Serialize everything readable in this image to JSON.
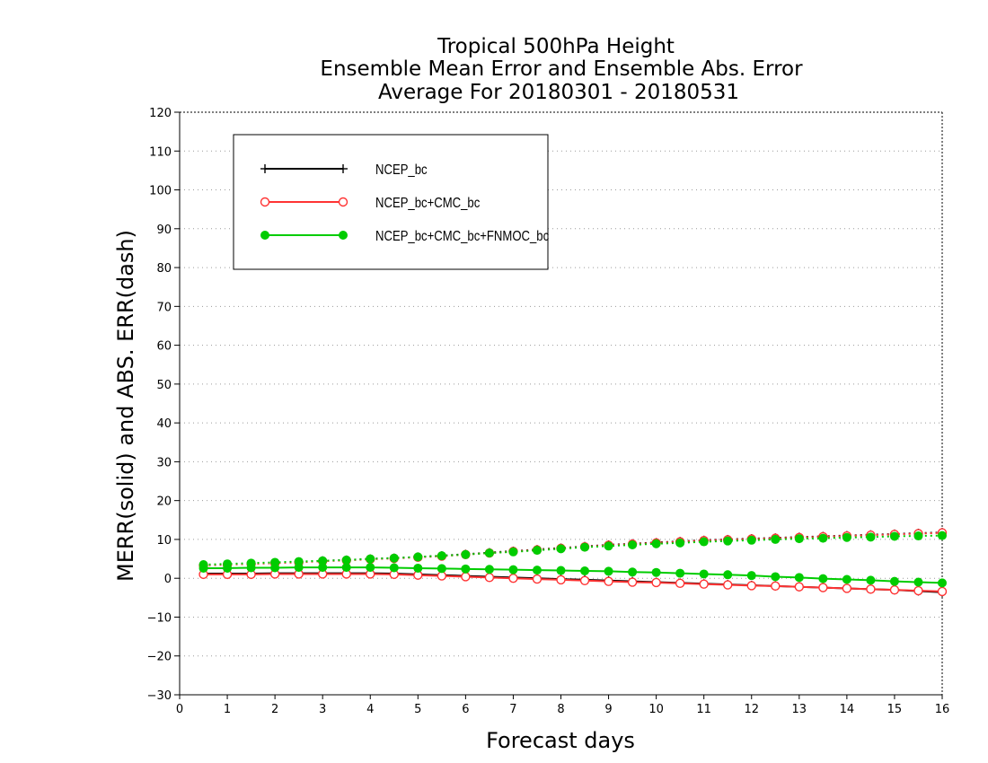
{
  "chart_data": {
    "type": "line",
    "title_lines": [
      "Tropical 500hPa Height",
      "Ensemble Mean Error and Ensemble Abs. Error",
      "Average For 20180301 - 20180531"
    ],
    "xlabel": "Forecast days",
    "ylabel": "MERR(solid) and ABS. ERR(dash)",
    "xlim": [
      0,
      16
    ],
    "ylim": [
      -30,
      120
    ],
    "x_ticks": [
      0,
      1,
      2,
      3,
      4,
      5,
      6,
      7,
      8,
      9,
      10,
      11,
      12,
      13,
      14,
      15,
      16
    ],
    "y_ticks": [
      -30,
      -20,
      -10,
      0,
      10,
      20,
      30,
      40,
      50,
      60,
      70,
      80,
      90,
      100,
      110,
      120
    ],
    "grid": true,
    "legend_position": "top-left",
    "x": [
      0.5,
      1,
      1.5,
      2,
      2.5,
      3,
      3.5,
      4,
      4.5,
      5,
      5.5,
      6,
      6.5,
      7,
      7.5,
      8,
      8.5,
      9,
      9.5,
      10,
      10.5,
      11,
      11.5,
      12,
      12.5,
      13,
      13.5,
      14,
      14.5,
      15,
      15.5,
      16
    ],
    "series": [
      {
        "name": "NCEP_bc",
        "color": "#000000",
        "marker": "plus",
        "merr": [
          1.2,
          1.2,
          1.2,
          1.3,
          1.3,
          1.3,
          1.3,
          1.3,
          1.2,
          1.0,
          0.8,
          0.6,
          0.4,
          0.2,
          0.0,
          -0.2,
          -0.4,
          -0.6,
          -0.8,
          -1.0,
          -1.2,
          -1.4,
          -1.6,
          -1.8,
          -2.0,
          -2.2,
          -2.4,
          -2.6,
          -2.8,
          -3.0,
          -3.3,
          -3.6
        ],
        "abserr": [
          3.4,
          3.6,
          3.8,
          4.0,
          4.2,
          4.5,
          4.7,
          5.0,
          5.2,
          5.5,
          5.8,
          6.2,
          6.6,
          7.0,
          7.4,
          7.8,
          8.2,
          8.6,
          8.9,
          9.2,
          9.5,
          9.8,
          10.0,
          10.2,
          10.4,
          10.6,
          10.8,
          11.0,
          11.2,
          11.4,
          11.6,
          11.8
        ]
      },
      {
        "name": "NCEP_bc+CMC_bc",
        "color": "#ff3333",
        "marker": "open-circle",
        "merr": [
          1.0,
          1.0,
          1.0,
          1.1,
          1.1,
          1.1,
          1.1,
          1.1,
          1.0,
          0.8,
          0.6,
          0.4,
          0.2,
          0.0,
          -0.2,
          -0.4,
          -0.6,
          -0.8,
          -1.0,
          -1.1,
          -1.3,
          -1.5,
          -1.7,
          -1.9,
          -2.0,
          -2.2,
          -2.4,
          -2.6,
          -2.8,
          -3.0,
          -3.2,
          -3.4
        ],
        "abserr": [
          3.3,
          3.5,
          3.7,
          3.9,
          4.1,
          4.4,
          4.6,
          4.9,
          5.1,
          5.4,
          5.7,
          6.1,
          6.5,
          6.9,
          7.3,
          7.7,
          8.1,
          8.5,
          8.8,
          9.1,
          9.4,
          9.7,
          9.9,
          10.1,
          10.3,
          10.5,
          10.7,
          10.9,
          11.1,
          11.3,
          11.5,
          11.7
        ]
      },
      {
        "name": "NCEP_bc+CMC_bc+FNMOC_bc",
        "color": "#00cc00",
        "marker": "filled-circle",
        "merr": [
          2.6,
          2.6,
          2.7,
          2.7,
          2.8,
          2.8,
          2.8,
          2.8,
          2.7,
          2.6,
          2.5,
          2.4,
          2.3,
          2.2,
          2.1,
          2.0,
          1.9,
          1.8,
          1.6,
          1.5,
          1.3,
          1.1,
          0.9,
          0.7,
          0.4,
          0.2,
          -0.1,
          -0.3,
          -0.5,
          -0.8,
          -1.0,
          -1.2
        ],
        "abserr": [
          3.5,
          3.7,
          3.9,
          4.1,
          4.3,
          4.5,
          4.7,
          5.0,
          5.2,
          5.5,
          5.8,
          6.1,
          6.5,
          6.8,
          7.2,
          7.6,
          8.0,
          8.3,
          8.6,
          8.9,
          9.1,
          9.4,
          9.6,
          9.8,
          10.0,
          10.2,
          10.3,
          10.5,
          10.6,
          10.8,
          10.9,
          11.0
        ]
      }
    ]
  }
}
